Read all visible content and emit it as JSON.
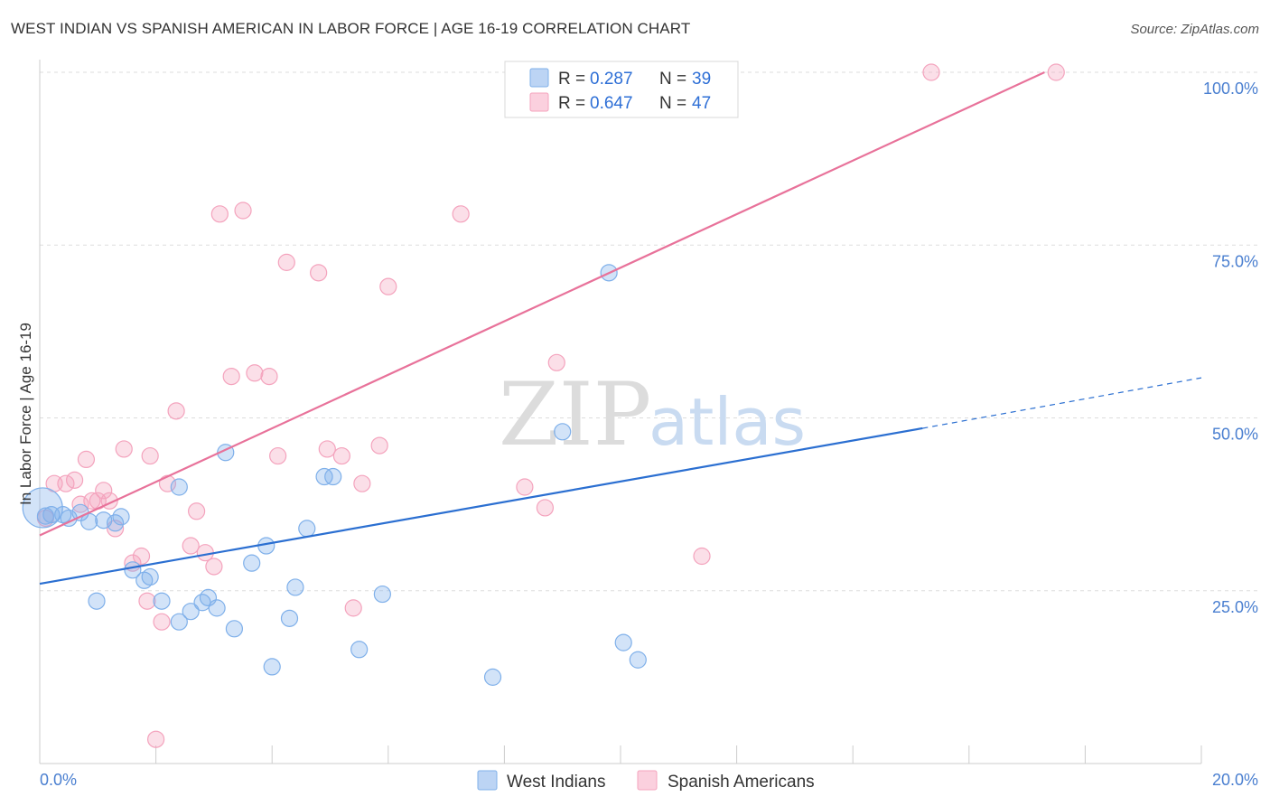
{
  "title": "WEST INDIAN VS SPANISH AMERICAN IN LABOR FORCE | AGE 16-19 CORRELATION CHART",
  "source": "Source: ZipAtlas.com",
  "watermark": {
    "zip": "ZIP",
    "atlas": "atlas"
  },
  "colors": {
    "west_indians": "#7fb0ea",
    "spanish_americans": "#f4a3bd",
    "blue_line": "#2b6fd1",
    "pink_line": "#e8729a",
    "tick_label": "#4a7fd0"
  },
  "legend": {
    "r_label": "R =",
    "n_label": "N =",
    "rows": [
      {
        "series": "west_indians",
        "r": "0.287",
        "n": "39"
      },
      {
        "series": "spanish_americans",
        "r": "0.647",
        "n": "47"
      }
    ]
  },
  "chart_data": {
    "type": "scatter",
    "xlabel": "",
    "ylabel": "In Labor Force | Age 16-19",
    "xlim": [
      0,
      20
    ],
    "ylim": [
      0,
      100
    ],
    "x_tick_labels": [
      "0.0%",
      "20.0%"
    ],
    "y_ticks": [
      25,
      50,
      75,
      100
    ],
    "y_tick_labels": [
      "25.0%",
      "50.0%",
      "75.0%",
      "100.0%"
    ],
    "grid": true,
    "legend_position": "top-center",
    "series": [
      {
        "name": "West Indians",
        "key": "west_indians",
        "points": [
          [
            0.05,
            37.0
          ],
          [
            0.2,
            36.0
          ],
          [
            0.4,
            36.0
          ],
          [
            0.5,
            35.5
          ],
          [
            0.7,
            36.3
          ],
          [
            0.85,
            35.0
          ],
          [
            1.1,
            35.2
          ],
          [
            1.3,
            34.8
          ],
          [
            1.4,
            35.7
          ],
          [
            0.98,
            23.5
          ],
          [
            1.6,
            28.0
          ],
          [
            1.8,
            26.5
          ],
          [
            1.9,
            27.0
          ],
          [
            2.1,
            23.5
          ],
          [
            2.4,
            40.0
          ],
          [
            2.4,
            20.5
          ],
          [
            2.6,
            22.0
          ],
          [
            2.8,
            23.3
          ],
          [
            2.9,
            24.0
          ],
          [
            3.05,
            22.5
          ],
          [
            3.2,
            45.0
          ],
          [
            3.35,
            19.5
          ],
          [
            3.65,
            29.0
          ],
          [
            3.9,
            31.5
          ],
          [
            4.0,
            14.0
          ],
          [
            4.3,
            21.0
          ],
          [
            4.4,
            25.5
          ],
          [
            4.6,
            34.0
          ],
          [
            4.9,
            41.5
          ],
          [
            5.05,
            41.5
          ],
          [
            5.5,
            16.5
          ],
          [
            5.9,
            24.5
          ],
          [
            7.8,
            12.5
          ],
          [
            9.0,
            48.0
          ],
          [
            9.8,
            71.0
          ],
          [
            10.05,
            17.5
          ],
          [
            10.3,
            15.0
          ],
          [
            11.3,
            100.0
          ],
          [
            0.1,
            35.8
          ]
        ],
        "trend": {
          "x": [
            0,
            15.2
          ],
          "y": [
            26.0,
            48.5
          ],
          "dashed_extension": {
            "x": [
              15.2,
              20.0
            ],
            "y": [
              48.5,
              55.8
            ]
          }
        }
      },
      {
        "name": "Spanish Americans",
        "key": "spanish_americans",
        "points": [
          [
            0.1,
            35.5
          ],
          [
            0.25,
            40.5
          ],
          [
            0.45,
            40.5
          ],
          [
            0.6,
            41.0
          ],
          [
            0.7,
            37.5
          ],
          [
            0.9,
            38.0
          ],
          [
            1.0,
            38.0
          ],
          [
            1.2,
            38.0
          ],
          [
            1.1,
            39.5
          ],
          [
            0.8,
            44.0
          ],
          [
            1.3,
            34.0
          ],
          [
            1.45,
            45.5
          ],
          [
            1.6,
            29.0
          ],
          [
            1.75,
            30.0
          ],
          [
            1.85,
            23.5
          ],
          [
            1.9,
            44.5
          ],
          [
            2.1,
            20.5
          ],
          [
            2.2,
            40.5
          ],
          [
            2.35,
            51.0
          ],
          [
            2.6,
            31.5
          ],
          [
            2.7,
            36.5
          ],
          [
            2.85,
            30.5
          ],
          [
            3.0,
            28.5
          ],
          [
            3.1,
            79.5
          ],
          [
            3.3,
            56.0
          ],
          [
            3.5,
            80.0
          ],
          [
            3.7,
            56.5
          ],
          [
            3.95,
            56.0
          ],
          [
            4.1,
            44.5
          ],
          [
            4.25,
            72.5
          ],
          [
            4.8,
            71.0
          ],
          [
            4.95,
            45.5
          ],
          [
            5.2,
            44.5
          ],
          [
            5.4,
            22.5
          ],
          [
            5.55,
            40.5
          ],
          [
            5.85,
            46.0
          ],
          [
            6.0,
            69.0
          ],
          [
            7.25,
            79.5
          ],
          [
            8.35,
            40.0
          ],
          [
            8.7,
            37.0
          ],
          [
            8.9,
            58.0
          ],
          [
            9.05,
            100.0
          ],
          [
            10.45,
            100.0
          ],
          [
            11.4,
            30.0
          ],
          [
            15.35,
            100.0
          ],
          [
            17.5,
            100.0
          ],
          [
            2.0,
            3.5
          ]
        ],
        "trend": {
          "x": [
            0,
            17.3
          ],
          "y": [
            33.0,
            100.0
          ]
        }
      }
    ]
  },
  "bottom_legend": [
    "West Indians",
    "Spanish Americans"
  ]
}
